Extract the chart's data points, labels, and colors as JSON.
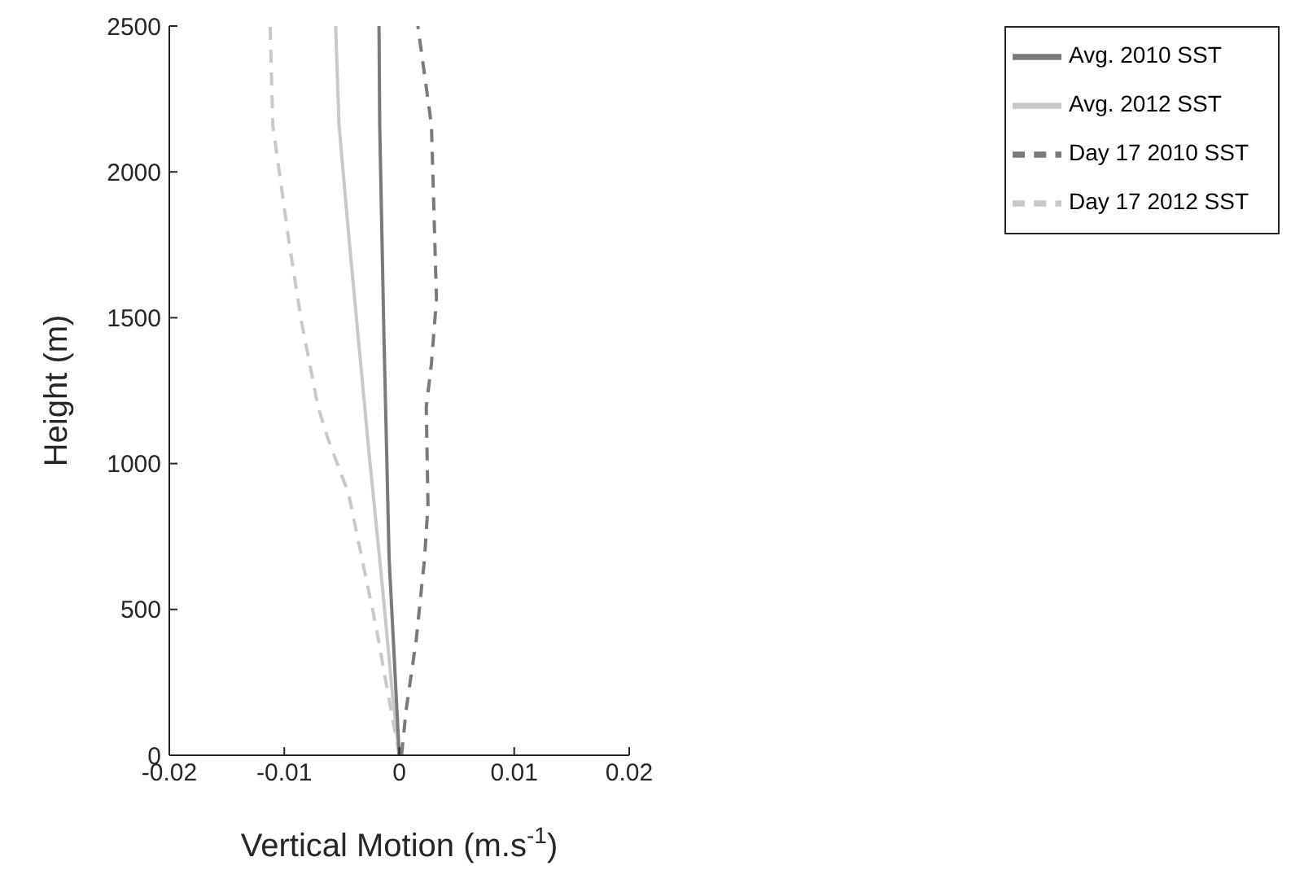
{
  "chart_data": {
    "type": "line",
    "xlabel": "Vertical Motion (m.s$^{-1}$)",
    "ylabel": "Height (m)",
    "xlim": [
      -0.02,
      0.02
    ],
    "xticks": [
      -0.02,
      -0.01,
      0,
      0.01,
      0.02
    ],
    "ylim": [
      0,
      2500
    ],
    "yticks": [
      0,
      500,
      1000,
      1500,
      2000,
      2500
    ],
    "legend": "top right",
    "grid": false,
    "series": [
      {
        "name": "Day 17 2012 SST",
        "color": "#c8c8c8",
        "line_style": "dashed",
        "x": [
          0,
          -0.00088,
          -0.00206,
          -0.00324,
          -0.00441,
          -0.00618,
          -0.00706,
          -0.00853,
          -0.00956,
          -0.011,
          -0.01123
        ],
        "values": [
          0,
          190,
          450,
          674,
          897,
          1083,
          1194,
          1492,
          1752,
          2161,
          2500
        ]
      },
      {
        "name": "Day 17 2010 SST",
        "color": "#7a7a7a",
        "line_style": "dashed",
        "x": [
          0.0002,
          0.00059,
          0.00147,
          0.0022,
          0.0025,
          0.00235,
          0.0028,
          0.00324,
          0.0028,
          0.00162
        ],
        "values": [
          0,
          152,
          394,
          674,
          859,
          1194,
          1343,
          1563,
          2161,
          2500
        ]
      },
      {
        "name": "Avg. 2012 SST",
        "color": "#c8c8c8",
        "line_style": "solid",
        "x": [
          0,
          -0.00059,
          -0.00147,
          -0.00265,
          -0.00353,
          -0.00441,
          -0.00524,
          -0.00553
        ],
        "values": [
          0,
          208,
          580,
          1045,
          1417,
          1790,
          2161,
          2500
        ]
      },
      {
        "name": "Avg. 2010 SST",
        "color": "#7a7a7a",
        "line_style": "solid",
        "x": [
          0,
          -0.00088,
          -0.00132,
          -0.0017,
          -0.00176
        ],
        "values": [
          0,
          674,
          1417,
          2161,
          2500
        ]
      }
    ]
  }
}
